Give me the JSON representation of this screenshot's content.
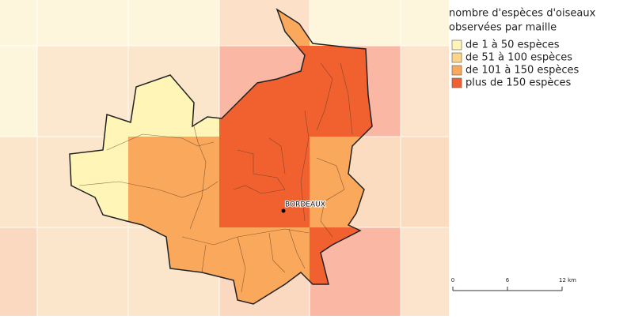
{
  "legend": {
    "title": [
      "nombre d'espèces d'oiseaux",
      "observées par maille"
    ],
    "items": [
      {
        "label": "de 1 à 50 espèces",
        "color": "#fef5b6"
      },
      {
        "label": "de 51 à 100 espèces",
        "color": "#fdd58a"
      },
      {
        "label": "de 101 à 150 espèces",
        "color": "#f9a85c"
      },
      {
        "label": "plus de 150 espèces",
        "color": "#f1602f"
      }
    ]
  },
  "scale": {
    "labels": [
      "0",
      "6",
      "12 km"
    ]
  },
  "city": {
    "label": "BORDEAUX"
  }
}
